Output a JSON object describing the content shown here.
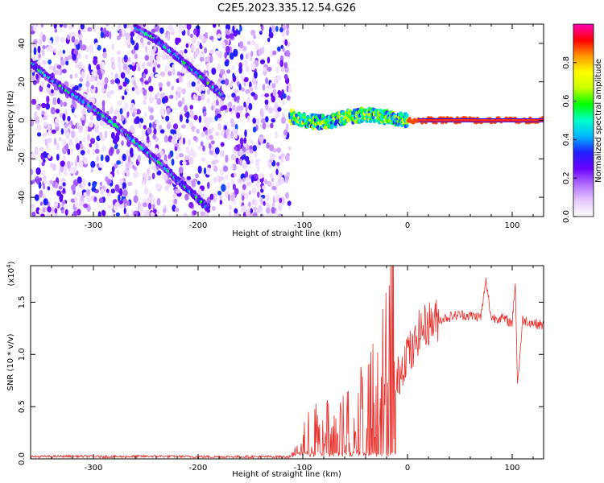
{
  "figure": {
    "title": "C2E5.2023.335.12.54.G26"
  },
  "chart_data": [
    {
      "type": "heatmap",
      "xlabel": "Height of straight line (km)",
      "ylabel": "Frequency (Hz)",
      "xlim": [
        -360,
        130
      ],
      "ylim": [
        -50,
        50
      ],
      "x_ticks": [
        -300,
        -200,
        -100,
        0,
        100
      ],
      "x_tick_labels": [
        "-300",
        "-200",
        "-100",
        "0",
        "100"
      ],
      "y_ticks": [
        -40,
        -20,
        0,
        20,
        40
      ],
      "y_tick_labels": [
        "-40",
        "-20",
        "0",
        "20",
        "40"
      ],
      "noise_region_x": [
        -360,
        -112
      ],
      "signal_tracks": [
        {
          "x": [
            -360,
            -345,
            -330,
            -310,
            -295,
            -280,
            -265,
            -250,
            -235,
            -220,
            -205,
            -190
          ],
          "y": [
            30,
            23,
            17,
            10,
            4,
            -2,
            -9,
            -16,
            -23,
            -31,
            -38,
            -46
          ]
        },
        {
          "x": [
            -260,
            -240,
            -220,
            -200,
            -185,
            -175
          ],
          "y": [
            48,
            42,
            33,
            24,
            17,
            12
          ]
        },
        {
          "x": [
            -112,
            -100,
            -85,
            -70,
            -55,
            -40,
            -25,
            -10,
            0,
            10,
            50,
            100,
            130
          ],
          "y": [
            2,
            0,
            -1,
            0,
            2,
            3,
            2,
            1,
            0,
            0,
            0,
            0,
            0
          ]
        }
      ],
      "colorbar": {
        "label": "Normalized spectral amplitude",
        "range": [
          0,
          1
        ],
        "ticks": [
          0.0,
          0.2,
          0.4,
          0.6,
          0.8
        ],
        "tick_labels": [
          "0.0",
          "0.2",
          "0.4",
          "0.6",
          "0.8"
        ],
        "colors": [
          "#ffffff",
          "#e6c8ff",
          "#b070ff",
          "#6a00ff",
          "#1f1fff",
          "#00b7ff",
          "#00ffcc",
          "#00ff00",
          "#c8ff00",
          "#ffff00",
          "#ff9900",
          "#ff0000",
          "#ff00b4"
        ]
      }
    },
    {
      "type": "line",
      "xlabel": "Height of straight line (km)",
      "ylabel": "SNR (10 * v/v)",
      "y_scale_label": "(x10",
      "y_scale_exp": "4",
      "y_scale_close": ")",
      "xlim": [
        -360,
        130
      ],
      "ylim": [
        0,
        1.85
      ],
      "x_ticks": [
        -300,
        -200,
        -100,
        0,
        100
      ],
      "x_tick_labels": [
        "-300",
        "-200",
        "-100",
        "0",
        "100"
      ],
      "y_ticks": [
        0.0,
        0.5,
        1.0,
        1.5
      ],
      "y_tick_labels": [
        "0.0",
        "0.5",
        "1.0",
        "1.5"
      ],
      "series": [
        {
          "color": "#e8302c",
          "x": [
            -360,
            -320,
            -280,
            -240,
            -200,
            -160,
            -120,
            -112,
            -105,
            -100,
            -95,
            -90,
            -85,
            -80,
            -75,
            -70,
            -65,
            -60,
            -55,
            -50,
            -45,
            -40,
            -35,
            -30,
            -25,
            -20,
            -17,
            -15,
            -12,
            -10,
            -5,
            0,
            5,
            10,
            20,
            30,
            40,
            50,
            60,
            70,
            75,
            80,
            90,
            100,
            103,
            105,
            110,
            120,
            130
          ],
          "y": [
            0.02,
            0.025,
            0.02,
            0.025,
            0.02,
            0.02,
            0.02,
            0.02,
            0.08,
            0.2,
            0.25,
            0.22,
            0.35,
            0.25,
            0.4,
            0.3,
            0.28,
            0.35,
            0.45,
            0.3,
            0.55,
            0.4,
            0.6,
            0.65,
            0.8,
            0.9,
            1.3,
            1.85,
            0.6,
            0.75,
            0.9,
            1.05,
            1.0,
            1.2,
            1.3,
            1.33,
            1.36,
            1.38,
            1.37,
            1.36,
            1.7,
            1.35,
            1.35,
            1.3,
            1.7,
            0.7,
            1.33,
            1.3,
            1.28
          ]
        }
      ]
    }
  ]
}
